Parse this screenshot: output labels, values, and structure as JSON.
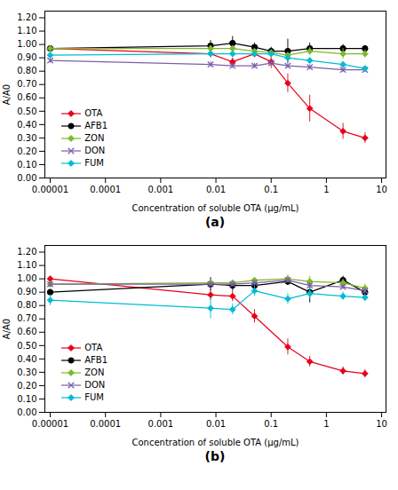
{
  "chart_data": [
    {
      "type": "line",
      "xlabel": "Concentration of soluble OTA (μg/mL)",
      "ylabel": "A/A0",
      "annotation": "(a)",
      "log": "x",
      "grid": false,
      "legend": "lower left",
      "x": [
        1e-05,
        0.008,
        0.02,
        0.05,
        0.1,
        0.2,
        0.5,
        2,
        5
      ],
      "xlim": [
        8e-06,
        12
      ],
      "xticks": [
        {
          "value": 1e-05,
          "label": "0.00001"
        },
        0.0001,
        0.001,
        0.01,
        0.1,
        1,
        10
      ],
      "ylim": [
        0.0,
        1.25
      ],
      "yticks": [
        {
          "value": 0.0,
          "label": "0.00"
        },
        {
          "value": 0.1,
          "label": "0.10"
        },
        {
          "value": 0.2,
          "label": "0.20"
        },
        {
          "value": 0.3,
          "label": "0.30"
        },
        {
          "value": 0.4,
          "label": "0.40"
        },
        {
          "value": 0.5,
          "label": "0.50"
        },
        {
          "value": 0.6,
          "label": "0.60"
        },
        {
          "value": 0.7,
          "label": "0.70"
        },
        {
          "value": 0.8,
          "label": "0.80"
        },
        {
          "value": 0.9,
          "label": "0.90"
        },
        {
          "value": 1.0,
          "label": "1.00"
        },
        {
          "value": 1.1,
          "label": "1.10"
        },
        {
          "value": 1.2,
          "label": "1.20"
        }
      ],
      "series": [
        {
          "name": "OTA",
          "color": "#e8001c",
          "marker": "diamond",
          "values": [
            0.97,
            0.93,
            0.87,
            0.93,
            0.87,
            0.71,
            0.52,
            0.35,
            0.3
          ],
          "errors": [
            0.02,
            0.03,
            0.03,
            0.03,
            0.05,
            0.07,
            0.1,
            0.06,
            0.04
          ]
        },
        {
          "name": "AFB1",
          "color": "#000000",
          "marker": "circle",
          "values": [
            0.97,
            0.99,
            1.01,
            0.98,
            0.95,
            0.95,
            0.97,
            0.97,
            0.97
          ],
          "errors": [
            0.02,
            0.04,
            0.05,
            0.03,
            0.03,
            0.09,
            0.04,
            0.03,
            0.02
          ]
        },
        {
          "name": "ZON",
          "color": "#7db928",
          "marker": "diamond",
          "values": [
            0.97,
            0.97,
            0.97,
            0.95,
            0.94,
            0.92,
            0.95,
            0.93,
            0.93
          ],
          "errors": [
            0.02,
            0.02,
            0.02,
            0.02,
            0.02,
            0.02,
            0.03,
            0.04,
            0.03
          ]
        },
        {
          "name": "DON",
          "color": "#7b5ea7",
          "marker": "x",
          "values": [
            0.88,
            0.85,
            0.84,
            0.84,
            0.86,
            0.84,
            0.83,
            0.81,
            0.81
          ],
          "errors": [
            0.02,
            0.02,
            0.02,
            0.02,
            0.02,
            0.02,
            0.02,
            0.02,
            0.02
          ]
        },
        {
          "name": "FUM",
          "color": "#00bcd4",
          "marker": "diamond",
          "values": [
            0.92,
            0.93,
            0.93,
            0.93,
            0.93,
            0.9,
            0.88,
            0.85,
            0.82
          ],
          "errors": [
            0.02,
            0.02,
            0.02,
            0.02,
            0.02,
            0.02,
            0.02,
            0.02,
            0.02
          ]
        }
      ]
    },
    {
      "type": "line",
      "xlabel": "Concentration of soluble OTA (μg/mL)",
      "ylabel": "A/A0",
      "annotation": "(b)",
      "log": "x",
      "grid": false,
      "legend": "lower left",
      "x": [
        1e-05,
        0.008,
        0.02,
        0.05,
        0.2,
        0.5,
        2,
        5
      ],
      "xlim": [
        8e-06,
        12
      ],
      "xticks": [
        {
          "value": 1e-05,
          "label": "0.00001"
        },
        0.0001,
        0.001,
        0.01,
        0.1,
        1,
        10
      ],
      "ylim": [
        0.0,
        1.25
      ],
      "yticks": [
        {
          "value": 0.0,
          "label": "0.00"
        },
        {
          "value": 0.1,
          "label": "0.10"
        },
        {
          "value": 0.2,
          "label": "0.20"
        },
        {
          "value": 0.3,
          "label": "0.30"
        },
        {
          "value": 0.4,
          "label": "0.40"
        },
        {
          "value": 0.5,
          "label": "0.50"
        },
        {
          "value": 0.6,
          "label": "0.60"
        },
        {
          "value": 0.7,
          "label": "0.70"
        },
        {
          "value": 0.8,
          "label": "0.80"
        },
        {
          "value": 0.9,
          "label": "0.90"
        },
        {
          "value": 1.0,
          "label": "1.00"
        },
        {
          "value": 1.1,
          "label": "1.10"
        },
        {
          "value": 1.2,
          "label": "1.20"
        }
      ],
      "series": [
        {
          "name": "OTA",
          "color": "#e8001c",
          "marker": "diamond",
          "values": [
            1.0,
            0.88,
            0.87,
            0.72,
            0.49,
            0.38,
            0.31,
            0.29
          ],
          "errors": [
            0.02,
            0.04,
            0.04,
            0.05,
            0.06,
            0.04,
            0.03,
            0.03
          ]
        },
        {
          "name": "AFB1",
          "color": "#000000",
          "marker": "circle",
          "values": [
            0.9,
            0.96,
            0.95,
            0.95,
            0.98,
            0.9,
            0.99,
            0.9
          ],
          "errors": [
            0.02,
            0.05,
            0.04,
            0.04,
            0.03,
            0.08,
            0.03,
            0.03
          ]
        },
        {
          "name": "ZON",
          "color": "#7db928",
          "marker": "diamond",
          "values": [
            0.96,
            0.97,
            0.97,
            0.99,
            1.0,
            0.98,
            0.97,
            0.93
          ],
          "errors": [
            0.02,
            0.02,
            0.02,
            0.02,
            0.03,
            0.04,
            0.03,
            0.03
          ]
        },
        {
          "name": "DON",
          "color": "#7b5ea7",
          "marker": "x",
          "values": [
            0.96,
            0.96,
            0.96,
            0.97,
            0.99,
            0.95,
            0.94,
            0.91
          ],
          "errors": [
            0.02,
            0.02,
            0.02,
            0.02,
            0.02,
            0.02,
            0.02,
            0.02
          ]
        },
        {
          "name": "FUM",
          "color": "#00bcd4",
          "marker": "diamond",
          "values": [
            0.84,
            0.78,
            0.77,
            0.91,
            0.85,
            0.89,
            0.87,
            0.86
          ],
          "errors": [
            0.04,
            0.08,
            0.04,
            0.04,
            0.04,
            0.04,
            0.03,
            0.03
          ]
        }
      ]
    }
  ]
}
